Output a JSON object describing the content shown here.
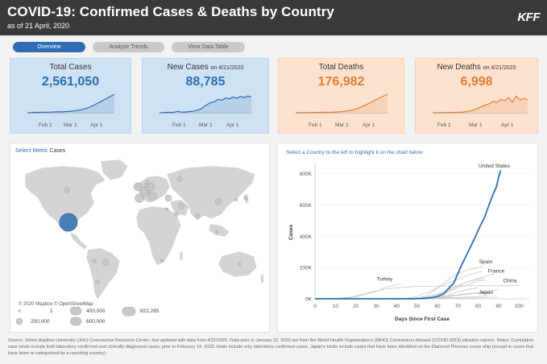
{
  "header": {
    "title": "COVID-19: Confirmed Cases & Deaths by Country",
    "subtitle": "as of 21 April, 2020",
    "logo": "KFF"
  },
  "tabs": [
    {
      "label": "Overview",
      "active": true
    },
    {
      "label": "Analyze Trends",
      "active": false
    },
    {
      "label": "View Data Table",
      "active": false
    }
  ],
  "cards": [
    {
      "label": "Total Cases",
      "value": "2,561,050",
      "color": "#2b6cb4",
      "ticks": [
        "Feb 1",
        "Mar 1",
        "Apr 1"
      ],
      "series": [
        0.01,
        0.01,
        0.02,
        0.02,
        0.03,
        0.03,
        0.04,
        0.05,
        0.05,
        0.06,
        0.07,
        0.09,
        0.12,
        0.16,
        0.22,
        0.3,
        0.4,
        0.52,
        0.64,
        0.76,
        0.88,
        1.0
      ]
    },
    {
      "label": "New Cases",
      "label_small": "on 4/21/2020",
      "value": "88,785",
      "color": "#2b6cb4",
      "ticks": [
        "Feb 1",
        "Mar 1",
        "Apr 1"
      ],
      "series": [
        0.0,
        0.01,
        0.02,
        0.02,
        0.03,
        0.08,
        0.03,
        0.04,
        0.06,
        0.08,
        0.12,
        0.18,
        0.3,
        0.45,
        0.55,
        0.6,
        0.72,
        0.68,
        0.8,
        0.75,
        0.85,
        0.78,
        0.88,
        0.82,
        0.9,
        0.85
      ]
    },
    {
      "label": "Total Deaths",
      "value": "176,982",
      "color": "#e67c2f",
      "ticks": [
        "Feb 1",
        "Mar 1",
        "Apr 1"
      ],
      "series": [
        0.0,
        0.0,
        0.01,
        0.01,
        0.01,
        0.02,
        0.02,
        0.02,
        0.03,
        0.04,
        0.05,
        0.07,
        0.1,
        0.15,
        0.22,
        0.31,
        0.42,
        0.54,
        0.66,
        0.78,
        0.89,
        1.0
      ]
    },
    {
      "label": "New Deaths",
      "label_small": "on 4/21/2020",
      "value": "6,998",
      "color": "#e67c2f",
      "ticks": [
        "Feb 1",
        "Mar 1",
        "Apr 1"
      ],
      "series": [
        0.0,
        0.0,
        0.01,
        0.01,
        0.01,
        0.02,
        0.02,
        0.03,
        0.04,
        0.06,
        0.1,
        0.16,
        0.25,
        0.34,
        0.42,
        0.5,
        0.62,
        0.55,
        0.72,
        0.66,
        0.82,
        0.58,
        0.9,
        0.68,
        0.78,
        0.7
      ]
    }
  ],
  "map_panel": {
    "select_label": "Select Metric",
    "select_value": "Cases",
    "attribution": "© 2020 Mapbox © OpenStreetMap",
    "legend": [
      "1",
      "200,000",
      "400,000",
      "600,000",
      "822,285"
    ]
  },
  "line_panel": {
    "instruction": "Select a Country to the left to highlight it on the chart below"
  },
  "chart_data": {
    "type": "line",
    "xlabel": "Days Since First Case",
    "ylabel": "Cases",
    "xlim": [
      0,
      105
    ],
    "ylim": [
      0,
      850000
    ],
    "x_ticks": [
      0,
      10,
      20,
      30,
      40,
      50,
      60,
      70,
      80,
      90,
      100
    ],
    "y_ticks": [
      {
        "v": 0,
        "label": "0K"
      },
      {
        "v": 200000,
        "label": "200K"
      },
      {
        "v": 400000,
        "label": "400K"
      },
      {
        "v": 600000,
        "label": "600K"
      },
      {
        "v": 800000,
        "label": "800K"
      }
    ],
    "highlight_color": "#2f6eb5",
    "grey_color": "#c8c8c8",
    "series": [
      {
        "name": "United States",
        "highlight": true,
        "x": [
          0,
          10,
          20,
          30,
          40,
          45,
          50,
          53,
          55,
          58,
          60,
          63,
          65,
          68,
          70,
          72,
          75,
          78,
          80,
          83,
          85,
          87,
          89,
          90,
          91
        ],
        "y": [
          1,
          8,
          12,
          13,
          20,
          60,
          300,
          1500,
          4000,
          9000,
          15000,
          30000,
          60000,
          100000,
          160000,
          220000,
          300000,
          380000,
          440000,
          520000,
          590000,
          660000,
          720000,
          780000,
          820000
        ]
      },
      {
        "name": "Spain",
        "x": [
          0,
          30,
          40,
          45,
          50,
          55,
          60,
          65,
          70,
          75,
          80,
          82
        ],
        "y": [
          1,
          2,
          5,
          200,
          3000,
          20000,
          70000,
          120000,
          160000,
          185000,
          200000,
          205000
        ]
      },
      {
        "name": "France",
        "x": [
          0,
          30,
          35,
          40,
          45,
          50,
          55,
          60,
          65,
          70,
          75,
          80,
          85,
          88
        ],
        "y": [
          1,
          12,
          100,
          400,
          1500,
          4500,
          12000,
          30000,
          56000,
          85000,
          110000,
          130000,
          150000,
          158000
        ]
      },
      {
        "name": "China",
        "x": [
          0,
          2,
          4,
          6,
          8,
          10,
          14,
          18,
          25,
          35,
          50,
          65,
          80,
          90,
          95,
          100
        ],
        "y": [
          27,
          40,
          200,
          400,
          1500,
          2800,
          6000,
          12000,
          35000,
          64000,
          80000,
          82000,
          83000,
          83500,
          84000,
          84200
        ]
      },
      {
        "name": "Japan",
        "x": [
          0,
          20,
          30,
          40,
          50,
          60,
          70,
          80,
          89
        ],
        "y": [
          1,
          8,
          50,
          160,
          400,
          1000,
          2500,
          6000,
          11000
        ]
      },
      {
        "name": "Turkey",
        "x": [
          0,
          5,
          10,
          15,
          20,
          25,
          30,
          35,
          40,
          42
        ],
        "y": [
          1,
          50,
          900,
          5000,
          13000,
          27000,
          47000,
          75000,
          90000,
          95000
        ]
      },
      {
        "name": "",
        "x": [
          0,
          30,
          35,
          40,
          45,
          50,
          55,
          60,
          65,
          70,
          75,
          80,
          82
        ],
        "y": [
          1,
          3,
          20,
          500,
          4000,
          15000,
          40000,
          70000,
          100000,
          125000,
          150000,
          170000,
          175000
        ]
      },
      {
        "name": "",
        "x": [
          0,
          30,
          40,
          50,
          55,
          60,
          65,
          70,
          75,
          80,
          84
        ],
        "y": [
          1,
          20,
          200,
          3000,
          10000,
          25000,
          40000,
          70000,
          90000,
          115000,
          120000
        ]
      },
      {
        "name": "",
        "x": [
          0,
          30,
          40,
          45,
          50,
          55,
          60,
          65,
          70,
          75,
          80,
          83
        ],
        "y": [
          1,
          30,
          100,
          800,
          5000,
          12000,
          30000,
          50000,
          80000,
          110000,
          125000,
          133000
        ]
      },
      {
        "name": "",
        "x": [
          0,
          40,
          45,
          50,
          55,
          60,
          65,
          70,
          75,
          80
        ],
        "y": [
          1,
          30,
          80,
          300,
          1800,
          8000,
          20000,
          45000,
          60000,
          70000
        ]
      },
      {
        "name": "",
        "x": [
          0,
          40,
          50,
          55,
          60,
          65,
          70,
          75,
          80,
          85
        ],
        "y": [
          1,
          50,
          250,
          1500,
          6000,
          13000,
          22000,
          30000,
          36000,
          40000
        ]
      },
      {
        "name": "",
        "x": [
          0,
          30,
          40,
          50,
          55,
          60,
          65,
          70,
          75,
          80,
          85,
          90
        ],
        "y": [
          1,
          10,
          150,
          1200,
          4000,
          9000,
          17000,
          25000,
          33000,
          40000,
          48000,
          60000
        ]
      },
      {
        "name": "",
        "x": [
          0,
          40,
          50,
          60,
          70,
          80,
          85
        ],
        "y": [
          1,
          200,
          1000,
          4000,
          9000,
          15000,
          20000
        ]
      }
    ],
    "labels": [
      {
        "text": "United States",
        "series": "United States"
      },
      {
        "text": "Spain",
        "series": "Spain"
      },
      {
        "text": "France",
        "series": "France"
      },
      {
        "text": "China",
        "series": "China"
      },
      {
        "text": "Japan",
        "series": "Japan"
      },
      {
        "text": "Turkey",
        "series": "Turkey"
      }
    ]
  },
  "footer": {
    "text": "Source: Johns Hopkins University (JHU) Coronavirus Resource Center; last updated with data from 4/21/2020. Data prior to January 22, 2020 are from the World Health Organization's (WHO) Coronavirus disease (COVID-2019) situation reports. Notes: Cumulative case totals include both laboratory confirmed and clinically diagnosed cases; prior to February 14, 2020, totals include only laboratory confirmed cases. Japan's totals include cases that have been identified on the Diamond Princess cruise ship (except in cases that have been re-categorized by a reporting country)"
  }
}
